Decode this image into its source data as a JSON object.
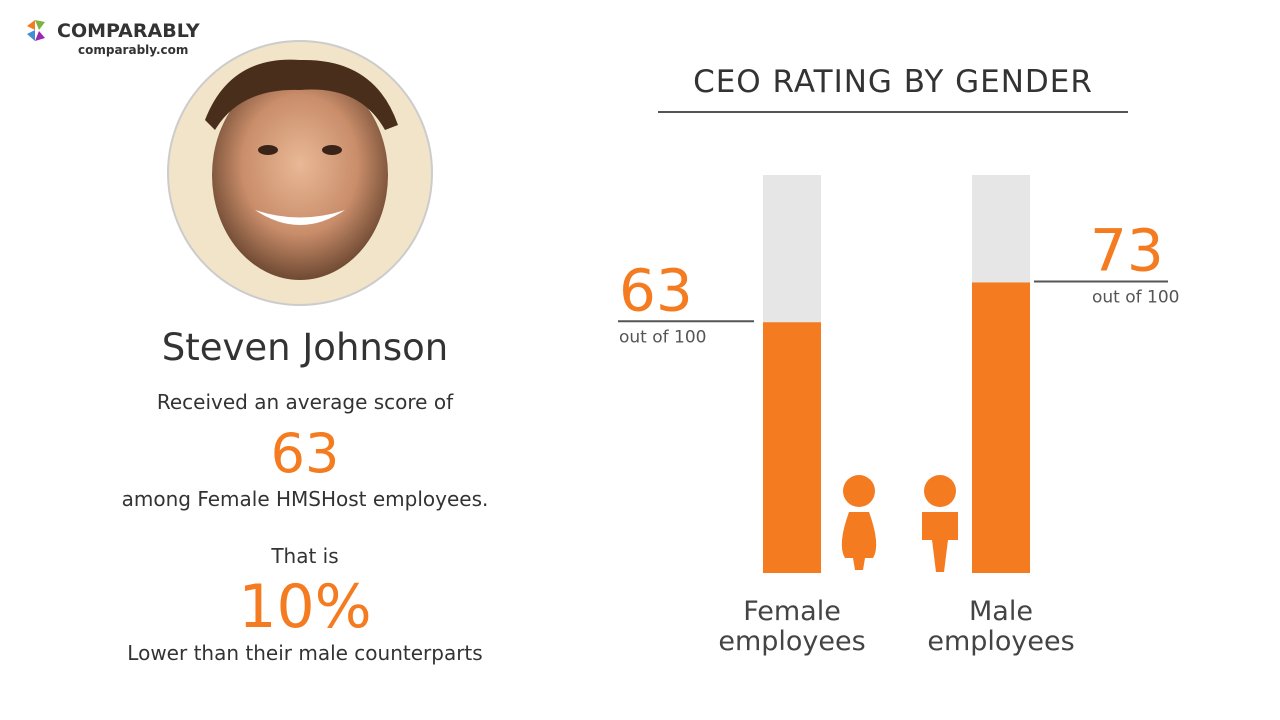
{
  "brand": {
    "name": "COMPARABLY",
    "site": "comparably.com"
  },
  "profile": {
    "name": "Steven Johnson",
    "intro": "Received an average score of",
    "score": "63",
    "group": "among Female HMSHost employees.",
    "that_is": "That is",
    "difference": "10%",
    "comparison": "Lower than their male counterparts"
  },
  "chart_data": {
    "type": "bar",
    "title": "CEO RATING BY GENDER",
    "categories": [
      "Female employees",
      "Male employees"
    ],
    "values": [
      63,
      73
    ],
    "value_suffix": "out of 100",
    "color": "#f47b20",
    "track_color": "#e6e6e6",
    "ylim": [
      0,
      100
    ]
  }
}
